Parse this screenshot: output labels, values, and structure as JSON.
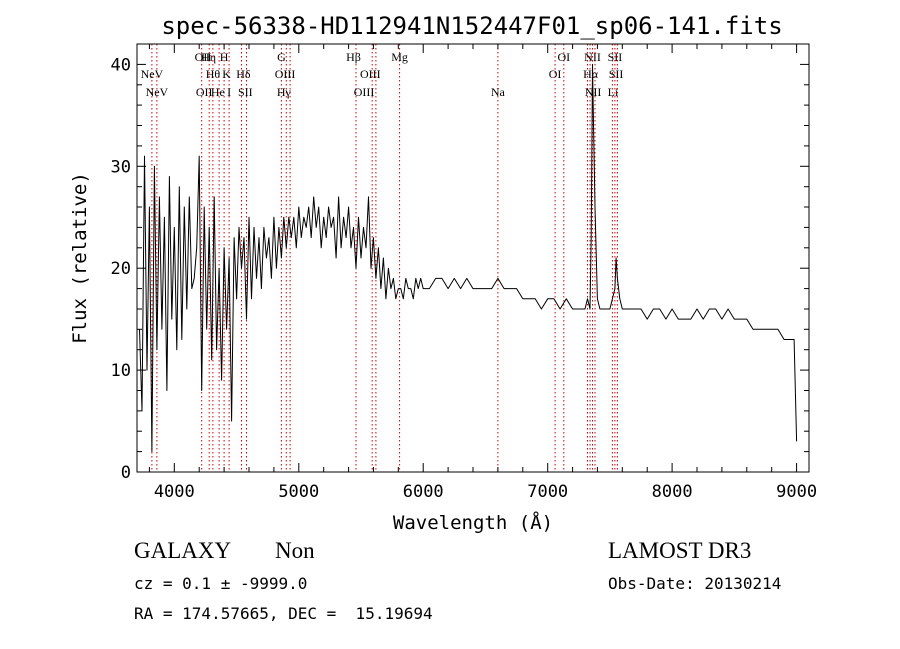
{
  "chart_data": {
    "type": "line",
    "title": "spec-56338-HD112941N152447F01_sp06-141.fits",
    "xlabel": "Wavelength (Å)",
    "ylabel": "Flux (relative)",
    "xlim": [
      3700,
      9100
    ],
    "ylim": [
      0,
      42
    ],
    "xticks": [
      4000,
      5000,
      6000,
      7000,
      8000,
      9000
    ],
    "yticks": [
      0,
      10,
      20,
      30,
      40
    ],
    "grid": false,
    "line_color": "#000000",
    "marker_color": "#d20000",
    "series": [
      {
        "name": "spectrum",
        "x": [
          3720,
          3740,
          3760,
          3780,
          3800,
          3820,
          3840,
          3860,
          3880,
          3900,
          3920,
          3940,
          3960,
          3980,
          4000,
          4020,
          4040,
          4060,
          4080,
          4100,
          4120,
          4140,
          4160,
          4180,
          4200,
          4220,
          4240,
          4260,
          4280,
          4300,
          4320,
          4340,
          4360,
          4380,
          4400,
          4420,
          4440,
          4460,
          4480,
          4500,
          4520,
          4540,
          4560,
          4580,
          4600,
          4620,
          4640,
          4660,
          4680,
          4700,
          4720,
          4740,
          4760,
          4780,
          4800,
          4820,
          4840,
          4860,
          4880,
          4900,
          4920,
          4940,
          4960,
          4980,
          5000,
          5020,
          5040,
          5060,
          5080,
          5100,
          5120,
          5140,
          5160,
          5180,
          5200,
          5220,
          5240,
          5260,
          5280,
          5300,
          5320,
          5340,
          5360,
          5380,
          5400,
          5420,
          5440,
          5460,
          5480,
          5500,
          5520,
          5540,
          5560,
          5580,
          5600,
          5620,
          5640,
          5660,
          5680,
          5700,
          5720,
          5740,
          5760,
          5780,
          5800,
          5820,
          5840,
          5860,
          5880,
          5900,
          5920,
          5940,
          5960,
          5980,
          6000,
          6050,
          6100,
          6150,
          6200,
          6250,
          6300,
          6350,
          6400,
          6450,
          6500,
          6550,
          6600,
          6650,
          6700,
          6750,
          6800,
          6850,
          6900,
          6950,
          7000,
          7050,
          7100,
          7150,
          7200,
          7250,
          7300,
          7320,
          7340,
          7350,
          7360,
          7370,
          7380,
          7400,
          7420,
          7450,
          7480,
          7500,
          7520,
          7540,
          7550,
          7560,
          7580,
          7600,
          7650,
          7700,
          7750,
          7800,
          7850,
          7900,
          7950,
          8000,
          8050,
          8100,
          8150,
          8200,
          8250,
          8300,
          8350,
          8400,
          8450,
          8500,
          8550,
          8600,
          8650,
          8700,
          8750,
          8800,
          8850,
          8900,
          8950,
          8980,
          9000
        ],
        "y": [
          14,
          6,
          31,
          10,
          26,
          2,
          30,
          12,
          27,
          14,
          25,
          8,
          29,
          15,
          24,
          12,
          28,
          13,
          26,
          16,
          27,
          18,
          19,
          22,
          31,
          8,
          26,
          14,
          24,
          11,
          27,
          12,
          20,
          9,
          22,
          14,
          21,
          5,
          23,
          17,
          24,
          20,
          23,
          15,
          25,
          17,
          24,
          19,
          23,
          18,
          24,
          21,
          23,
          19,
          25,
          20,
          24,
          21,
          25,
          22,
          25,
          23,
          25,
          22,
          26,
          23,
          25,
          24,
          26,
          23,
          27,
          24,
          26,
          22,
          25,
          23,
          26,
          24,
          25,
          21,
          27,
          22,
          25,
          23,
          26,
          22,
          24,
          20,
          25,
          21,
          24,
          22,
          27,
          20,
          23,
          19,
          22,
          18,
          21,
          17,
          20,
          18,
          19,
          17,
          18,
          18,
          17,
          19,
          18,
          18,
          17,
          19,
          18,
          19,
          18,
          18,
          19,
          19,
          18,
          19,
          18,
          19,
          18,
          18,
          18,
          18,
          19,
          18,
          18,
          18,
          17,
          17,
          17,
          16,
          17,
          17,
          16,
          17,
          16,
          16,
          16,
          17,
          16,
          23,
          40,
          33,
          26,
          17,
          16,
          16,
          16,
          16,
          17,
          18,
          21,
          19,
          17,
          16,
          16,
          16,
          16,
          15,
          16,
          16,
          15,
          16,
          15,
          15,
          15,
          16,
          15,
          16,
          16,
          15,
          16,
          15,
          15,
          15,
          14,
          14,
          14,
          14,
          14,
          13,
          13,
          13,
          3
        ]
      }
    ],
    "lines": [
      {
        "label": "NeV",
        "x": 3820,
        "row": 1
      },
      {
        "label": "NeV",
        "x": 3860,
        "row": 2
      },
      {
        "label": "OII",
        "x": 4230,
        "row": 0
      },
      {
        "label": "OII",
        "x": 4240,
        "row": 2
      },
      {
        "label": "Hη",
        "x": 4275,
        "row": 0
      },
      {
        "label": "Hθ",
        "x": 4310,
        "row": 1
      },
      {
        "label": "He",
        "x": 4350,
        "row": 2
      },
      {
        "label": "H",
        "x": 4400,
        "row": 0
      },
      {
        "label": "K",
        "x": 4420,
        "row": 1
      },
      {
        "label": "I",
        "x": 4440,
        "row": 2
      },
      {
        "label": "Hδ",
        "x": 4555,
        "row": 1
      },
      {
        "label": "SII",
        "x": 4570,
        "row": 2
      },
      {
        "label": "G",
        "x": 4860,
        "row": 0
      },
      {
        "label": "OIII",
        "x": 4890,
        "row": 1
      },
      {
        "label": "Hγ",
        "x": 4880,
        "row": 2
      },
      {
        "label": "Hβ",
        "x": 5440,
        "row": 0
      },
      {
        "label": "OIII",
        "x": 5575,
        "row": 1
      },
      {
        "label": "OIII",
        "x": 5525,
        "row": 2
      },
      {
        "label": "Mg",
        "x": 5810,
        "row": 0
      },
      {
        "label": "Na",
        "x": 6600,
        "row": 2
      },
      {
        "label": "OI",
        "x": 7130,
        "row": 0
      },
      {
        "label": "OI",
        "x": 7060,
        "row": 1
      },
      {
        "label": "NII",
        "x": 7360,
        "row": 0
      },
      {
        "label": "Hα",
        "x": 7345,
        "row": 1
      },
      {
        "label": "NII",
        "x": 7365,
        "row": 2
      },
      {
        "label": "SII",
        "x": 7540,
        "row": 0
      },
      {
        "label": "SII",
        "x": 7550,
        "row": 1
      },
      {
        "label": "Li",
        "x": 7525,
        "row": 2
      }
    ],
    "line_markers_x": [
      3820,
      3860,
      4220,
      4280,
      4310,
      4360,
      4400,
      4440,
      4540,
      4580,
      4860,
      4900,
      4930,
      5460,
      5590,
      5620,
      5810,
      6600,
      7060,
      7130,
      7320,
      7340,
      7360,
      7380,
      7520,
      7540,
      7560
    ]
  },
  "info": {
    "object_class": "GALAXY",
    "subclass": "Non",
    "cz_line": "cz = 0.1 ± -9999.0",
    "coords_line": "RA = 174.57665, DEC =  15.19694",
    "survey": "LAMOST DR3",
    "obs_date": "Obs-Date: 20130214"
  }
}
